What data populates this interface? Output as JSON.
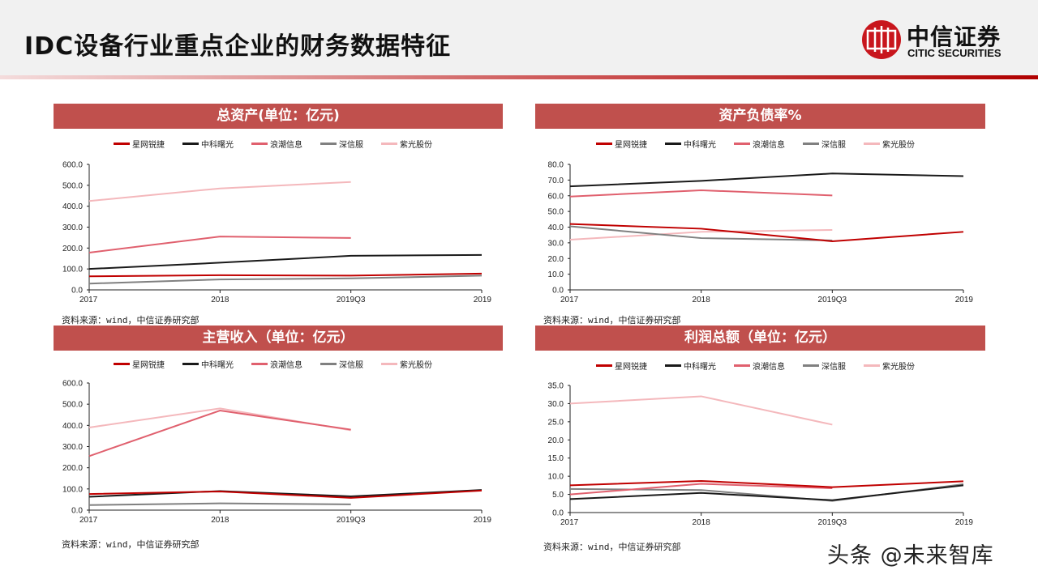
{
  "header": {
    "title": "IDC设备行业重点企业的财务数据特征",
    "logo_cn": "中信证券",
    "logo_en": "CITIC SECURITIES"
  },
  "watermark": "头条 @未来智库",
  "series_names": [
    "星网锐捷",
    "中科曙光",
    "浪潮信息",
    "深信服",
    "紫光股份"
  ],
  "series_colors": [
    "#c00000",
    "#1a1a1a",
    "#e0606e",
    "#808080",
    "#f4b8bc"
  ],
  "source_note": "资料来源：wind，中信证券研究部",
  "chart_data": [
    {
      "type": "line",
      "title": "总资产(单位：亿元)",
      "categories": [
        "2017",
        "2018",
        "2019Q3",
        "2019"
      ],
      "ylim": [
        0,
        600
      ],
      "yticks": [
        "0.0",
        "100.0",
        "200.0",
        "300.0",
        "400.0",
        "500.0",
        "600.0"
      ],
      "legend": "top",
      "series": [
        {
          "name": "星网锐捷",
          "values": [
            65,
            70,
            68,
            78
          ]
        },
        {
          "name": "中科曙光",
          "values": [
            100,
            130,
            163,
            167
          ]
        },
        {
          "name": "浪潮信息",
          "values": [
            178,
            255,
            248,
            null
          ]
        },
        {
          "name": "深信服",
          "values": [
            30,
            50,
            55,
            68
          ]
        },
        {
          "name": "紫光股份",
          "values": [
            425,
            485,
            516,
            null
          ]
        }
      ]
    },
    {
      "type": "line",
      "title": "资产负债率%",
      "categories": [
        "2017",
        "2018",
        "2019Q3",
        "2019"
      ],
      "ylim": [
        0,
        80
      ],
      "yticks": [
        "0.0",
        "10.0",
        "20.0",
        "30.0",
        "40.0",
        "50.0",
        "60.0",
        "70.0",
        "80.0"
      ],
      "legend": "top",
      "series": [
        {
          "name": "星网锐捷",
          "values": [
            42,
            39,
            31,
            37
          ]
        },
        {
          "name": "中科曙光",
          "values": [
            66,
            69.5,
            74.2,
            72.5
          ]
        },
        {
          "name": "浪潮信息",
          "values": [
            59.5,
            63.5,
            60.2,
            null
          ]
        },
        {
          "name": "深信服",
          "values": [
            40.5,
            33,
            31.5,
            null
          ]
        },
        {
          "name": "紫光股份",
          "values": [
            32,
            37,
            38.2,
            null
          ]
        }
      ]
    },
    {
      "type": "line",
      "title": "主营收入（单位：亿元）",
      "categories": [
        "2017",
        "2018",
        "2019Q3",
        "2019"
      ],
      "ylim": [
        0,
        600
      ],
      "yticks": [
        "0.0",
        "100.0",
        "200.0",
        "300.0",
        "400.0",
        "500.0",
        "600.0"
      ],
      "legend": "top",
      "series": [
        {
          "name": "星网锐捷",
          "values": [
            76,
            88,
            58,
            92
          ]
        },
        {
          "name": "中科曙光",
          "values": [
            63,
            90,
            65,
            95
          ]
        },
        {
          "name": "浪潮信息",
          "values": [
            255,
            470,
            380,
            null
          ]
        },
        {
          "name": "深信服",
          "values": [
            24,
            32,
            27,
            null
          ]
        },
        {
          "name": "紫光股份",
          "values": [
            390,
            480,
            377,
            null
          ]
        }
      ]
    },
    {
      "type": "line",
      "title": "利润总额（单位：亿元）",
      "categories": [
        "2017",
        "2018",
        "2019Q3",
        "2019"
      ],
      "ylim": [
        0,
        35
      ],
      "yticks": [
        "0.0",
        "5.0",
        "10.0",
        "15.0",
        "20.0",
        "25.0",
        "30.0",
        "35.0"
      ],
      "legend": "top",
      "series": [
        {
          "name": "星网锐捷",
          "values": [
            7.5,
            8.7,
            7.0,
            8.6
          ]
        },
        {
          "name": "中科曙光",
          "values": [
            3.7,
            5.4,
            3.4,
            7.5
          ]
        },
        {
          "name": "浪潮信息",
          "values": [
            5.0,
            7.9,
            6.7,
            null
          ]
        },
        {
          "name": "深信服",
          "values": [
            6.5,
            6.2,
            3.2,
            7.8
          ]
        },
        {
          "name": "紫光股份",
          "values": [
            30,
            32,
            24.2,
            null
          ]
        }
      ]
    }
  ]
}
